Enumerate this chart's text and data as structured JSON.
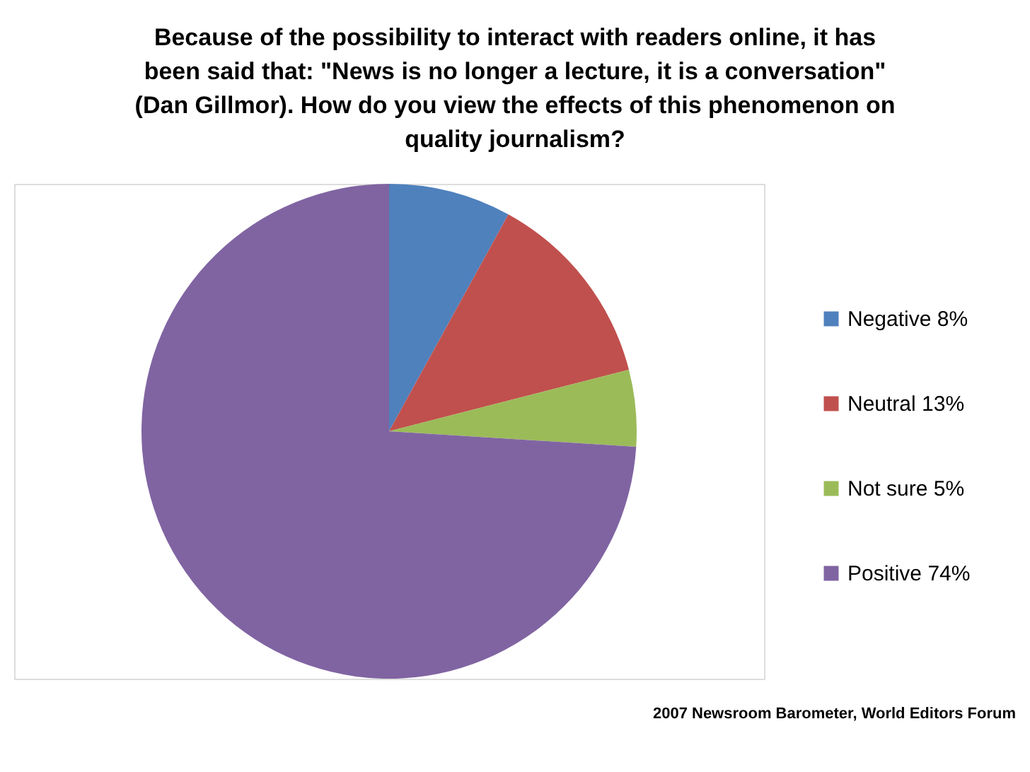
{
  "chart_data": {
    "type": "pie",
    "title": "Because of the possibility to interact with readers online, it has been said that: \"News is no longer a lecture, it is a conversation\" (Dan Gillmor). How do you view the effects of this phenomenon on quality journalism?",
    "categories": [
      "Negative 8%",
      "Neutral 13%",
      "Not sure 5%",
      "Positive 74%"
    ],
    "values": [
      8,
      13,
      5,
      74
    ],
    "colors": [
      "#4f81bd",
      "#c0504d",
      "#9bbb59",
      "#8064a2"
    ],
    "legend": "right",
    "annotations": [
      "2007 Newsroom Barometer, World Editors Forum"
    ]
  }
}
